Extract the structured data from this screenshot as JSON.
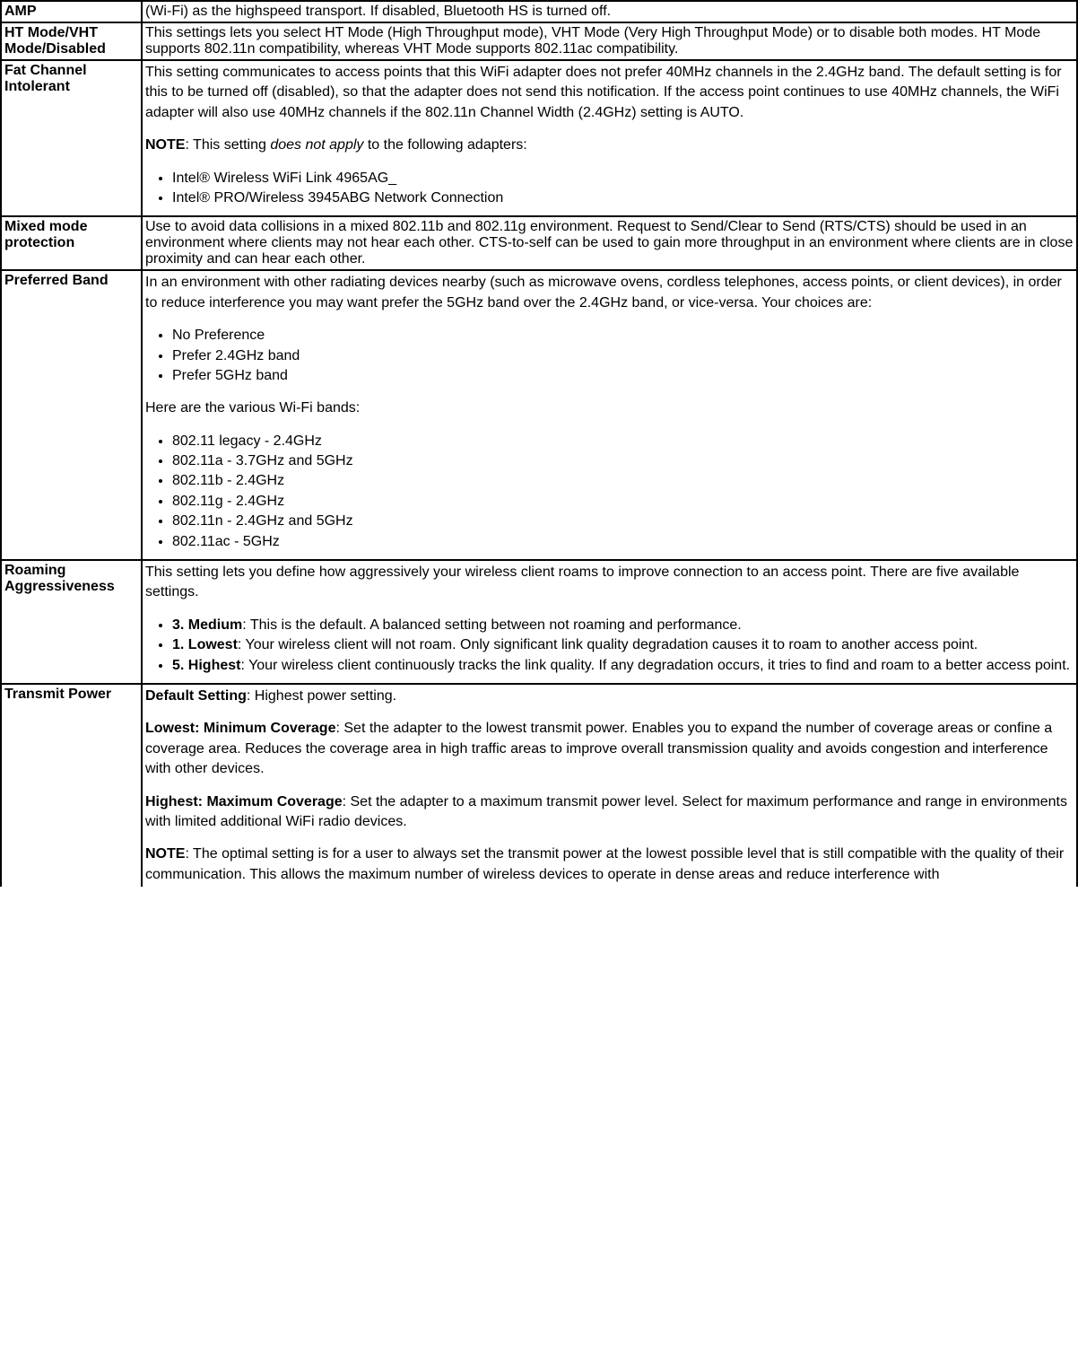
{
  "rows": {
    "amp": {
      "label": "AMP",
      "desc": "(Wi-Fi) as the highspeed transport. If disabled, Bluetooth HS is turned off."
    },
    "ht": {
      "label": "HT Mode/VHT Mode/Disabled",
      "desc": "This settings lets you select HT Mode (High Throughput mode), VHT Mode (Very High Throughput Mode) or to disable both modes. HT Mode supports 802.11n compatibility, whereas VHT Mode supports 802.11ac compatibility."
    },
    "fat": {
      "label": "Fat Channel Intolerant",
      "desc": "This setting communicates to access points that this WiFi adapter does not prefer 40MHz channels in the 2.4GHz band. The default setting is for this to be turned off (disabled), so that the adapter does not send this notification. If the access point continues to use 40MHz channels, the WiFi adapter will also use 40MHz channels if the 802.11n Channel Width (2.4GHz) setting is AUTO.",
      "note_prefix": "NOTE",
      "note_mid1": ": This setting ",
      "note_em": "does not apply",
      "note_mid2": " to the following adapters:",
      "li1": "Intel® Wireless WiFi Link 4965AG_",
      "li2": "Intel® PRO/Wireless 3945ABG Network Connection"
    },
    "mixed": {
      "label": "Mixed mode protection",
      "desc": "Use to avoid data collisions in a mixed 802.11b and 802.11g environment. Request to Send/Clear to Send (RTS/CTS) should be used in an environment where clients may not hear each other. CTS-to-self can be used to gain more throughput in an environment where clients are in close proximity and can hear each other."
    },
    "pref": {
      "label": "Preferred Band",
      "desc": "In an environment with other radiating devices nearby (such as microwave ovens, cordless telephones, access points, or client devices), in order to reduce interference you may want prefer the 5GHz band over the 2.4GHz band, or vice-versa. Your choices are:",
      "c1": "No Preference",
      "c2": "Prefer 2.4GHz band",
      "c3": "Prefer 5GHz band",
      "bands_intro": "Here are the various Wi-Fi bands:",
      "b1": "802.11 legacy - 2.4GHz",
      "b2": "802.11a - 3.7GHz and 5GHz",
      "b3": "802.11b - 2.4GHz",
      "b4": "802.11g - 2.4GHz",
      "b5": "802.11n - 2.4GHz and 5GHz",
      "b6": "802.11ac - 5GHz"
    },
    "roam": {
      "label": "Roaming Aggressiveness",
      "desc": "This setting lets you define how aggressively your wireless client roams to improve connection to an access point. There are five available settings.",
      "i1b": "3. Medium",
      "i1t": ": This is the default. A balanced setting between not roaming and performance.",
      "i2b": "1. Lowest",
      "i2t": ": Your wireless client will not roam. Only significant link quality degradation causes it to roam to another access point.",
      "i3b": "5. Highest",
      "i3t": ": Your wireless client continuously tracks the link quality. If any degradation occurs, it tries to find and roam to a better access point."
    },
    "tx": {
      "label": "Transmit Power",
      "d1b": "Default Setting",
      "d1t": ": Highest power setting.",
      "d2b": "Lowest: Minimum Coverage",
      "d2t": ": Set the adapter to the lowest transmit power. Enables you to expand the number of coverage areas or confine a coverage area. Reduces the coverage area in high traffic areas to improve overall transmission quality and avoids congestion and interference with other devices.",
      "d3b": "Highest: Maximum Coverage",
      "d3t": ": Set the adapter to a maximum transmit power level. Select for maximum performance and range in environments with limited additional WiFi radio devices.",
      "nb": "NOTE",
      "nt": ": The optimal setting is for a user to always set the transmit power at the lowest possible level that is still compatible with the quality of their communication. This allows the maximum number of wireless devices to operate in dense areas and reduce interference with"
    }
  }
}
